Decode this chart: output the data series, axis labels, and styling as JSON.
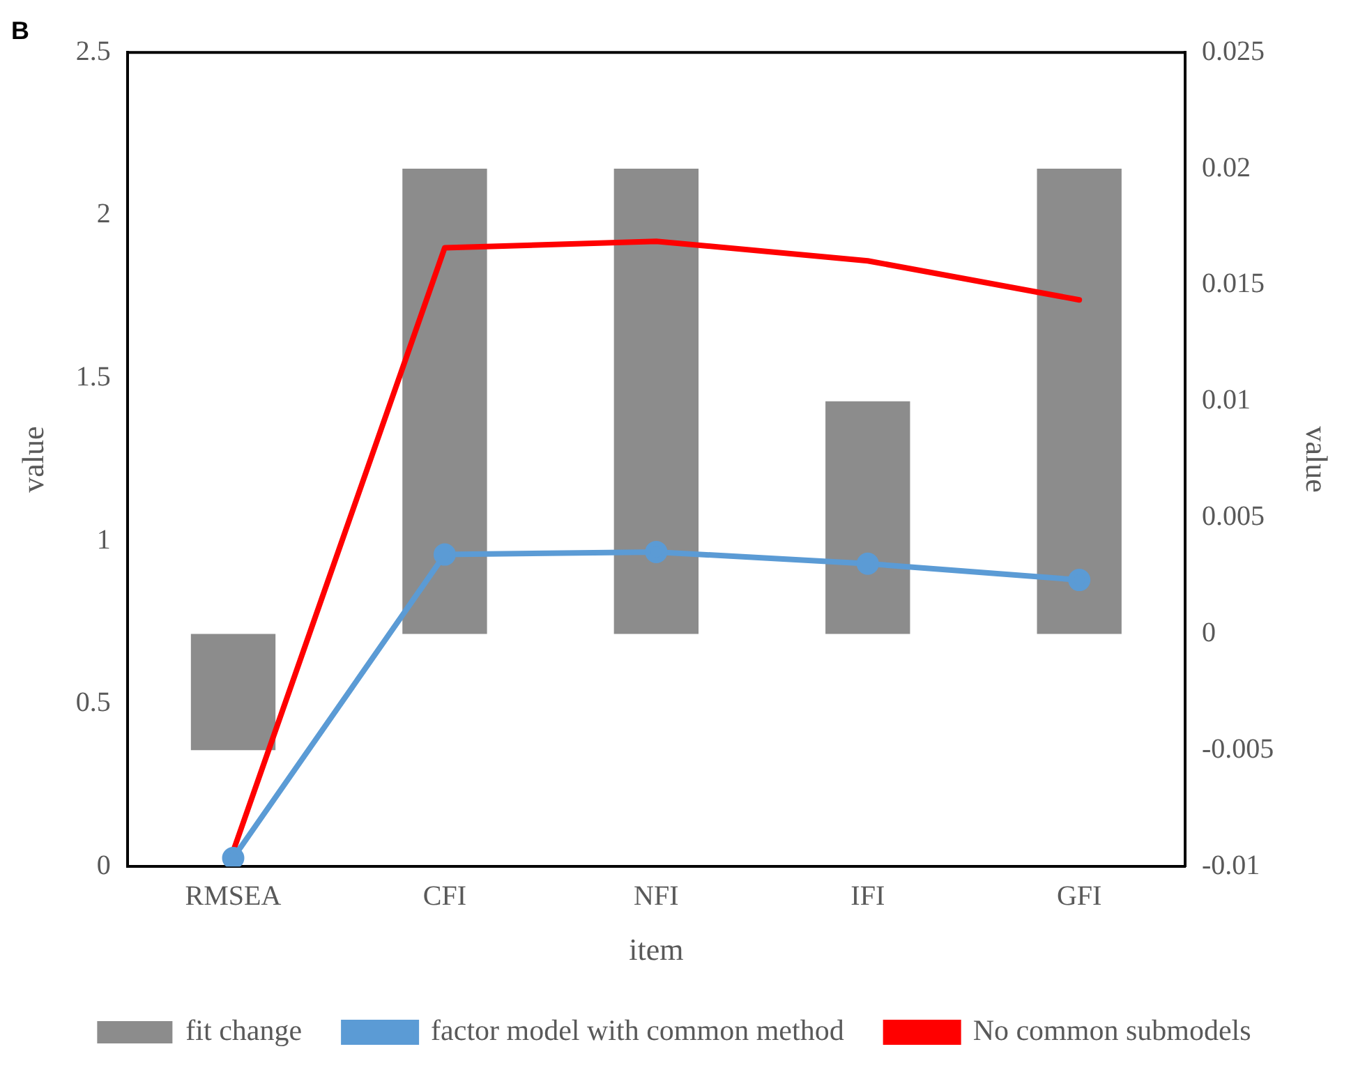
{
  "chart_data": {
    "type": "bar",
    "title": "B",
    "xlabel": "item",
    "ylabel": "value",
    "y2label": "value",
    "categories": [
      "RMSEA",
      "CFI",
      "NFI",
      "IFI",
      "GFI"
    ],
    "series": [
      {
        "name": "fit change",
        "axis": "y2",
        "color": "#8c8c8c",
        "values": [
          -0.005,
          0.02,
          0.02,
          0.01,
          0.02
        ]
      },
      {
        "name": "factor model with common method",
        "type": "line",
        "color": "#5b9bd5",
        "marker": "circle",
        "values": [
          0.026,
          0.958,
          0.966,
          0.93,
          0.88
        ]
      },
      {
        "name": "No common submodels",
        "type": "line",
        "color": "#ff0000",
        "marker": "none",
        "values": [
          0.047,
          1.9,
          1.92,
          1.86,
          1.74
        ]
      }
    ],
    "ylim": [
      0,
      2.5
    ],
    "yticks": [
      0,
      0.5,
      1,
      1.5,
      2,
      2.5
    ],
    "y2lim": [
      -0.01,
      0.025
    ],
    "y2ticks": [
      -0.01,
      -0.005,
      0,
      0.005,
      0.01,
      0.015,
      0.02,
      0.025
    ],
    "grid": false,
    "legend": "bottom"
  }
}
